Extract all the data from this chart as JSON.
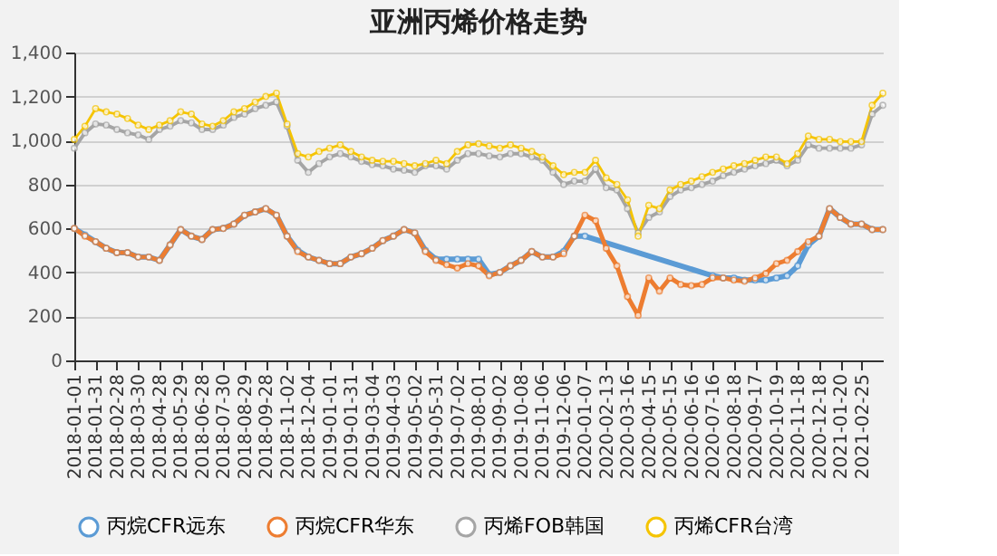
{
  "chart_data": {
    "type": "line",
    "title": "亚洲丙烯价格走势",
    "categories": [
      "2018-01-01",
      null,
      "2018-01-31",
      null,
      "2018-02-28",
      null,
      "2018-03-30",
      null,
      "2018-04-28",
      null,
      "2018-05-29",
      null,
      "2018-06-28",
      null,
      "2018-07-30",
      null,
      "2018-08-29",
      null,
      "2018-09-28",
      null,
      "2018-11-02",
      null,
      "2018-12-04",
      null,
      "2019-01-01",
      null,
      "2019-01-31",
      null,
      "2019-03-04",
      null,
      "2019-04-03",
      null,
      "2019-05-02",
      null,
      "2019-05-31",
      null,
      "2019-07-02",
      null,
      "2019-08-01",
      null,
      "2019-09-02",
      null,
      "2019-10-08",
      null,
      "2019-11-06",
      null,
      "2019-12-06",
      null,
      "2020-01-07",
      null,
      "2020-02-13",
      null,
      "2020-03-16",
      null,
      "2020-04-15",
      null,
      "2020-05-15",
      null,
      "2020-06-16",
      null,
      "2020-07-16",
      null,
      "2020-08-18",
      null,
      "2020-09-17",
      null,
      "2020-10-19",
      null,
      "2020-11-18",
      null,
      "2020-12-18",
      null,
      "2021-01-20",
      null,
      "2021-02-25",
      null,
      null
    ],
    "series": [
      {
        "name": "丙烷CFR远东",
        "color": "#5b9bd5",
        "values": [
          600,
          570,
          540,
          510,
          490,
          490,
          470,
          470,
          455,
          525,
          595,
          565,
          550,
          595,
          600,
          620,
          660,
          675,
          690,
          660,
          565,
          500,
          470,
          455,
          440,
          440,
          470,
          485,
          510,
          545,
          565,
          595,
          580,
          500,
          460,
          460,
          460,
          460,
          460,
          390,
          400,
          430,
          455,
          495,
          470,
          470,
          495,
          565,
          565,
          null,
          null,
          null,
          null,
          null,
          null,
          null,
          null,
          null,
          null,
          null,
          385,
          375,
          375,
          365,
          365,
          365,
          375,
          385,
          430,
          525,
          565,
          690,
          650,
          620,
          620,
          595,
          595
        ]
      },
      {
        "name": "丙烷CFR华东",
        "color": "#ed7d31",
        "values": [
          600,
          565,
          540,
          510,
          490,
          490,
          470,
          470,
          455,
          525,
          595,
          565,
          550,
          595,
          600,
          620,
          660,
          675,
          690,
          660,
          565,
          495,
          470,
          455,
          440,
          440,
          470,
          485,
          510,
          545,
          565,
          595,
          580,
          495,
          455,
          435,
          420,
          440,
          430,
          385,
          400,
          430,
          455,
          495,
          470,
          470,
          485,
          565,
          660,
          635,
          510,
          430,
          290,
          205,
          375,
          315,
          375,
          345,
          340,
          345,
          375,
          375,
          365,
          360,
          375,
          395,
          440,
          455,
          495,
          540,
          565,
          690,
          650,
          620,
          620,
          595,
          595
        ]
      },
      {
        "name": "丙烯FOB韩国",
        "color": "#a5a5a5",
        "values": [
          965,
          1035,
          1075,
          1070,
          1050,
          1035,
          1025,
          1005,
          1050,
          1065,
          1090,
          1080,
          1050,
          1050,
          1070,
          1105,
          1120,
          1145,
          1160,
          1175,
          1065,
          910,
          855,
          895,
          925,
          940,
          925,
          905,
          890,
          885,
          870,
          865,
          855,
          885,
          885,
          870,
          910,
          940,
          940,
          930,
          925,
          940,
          940,
          925,
          910,
          855,
          800,
          815,
          815,
          870,
          785,
          775,
          690,
          580,
          650,
          675,
          745,
          775,
          785,
          800,
          815,
          840,
          855,
          870,
          885,
          895,
          910,
          885,
          910,
          980,
          965,
          965,
          965,
          965,
          980,
          1120,
          1160
        ]
      },
      {
        "name": "丙烯CFR台湾",
        "color": "#f5c400",
        "values": [
          1005,
          1065,
          1145,
          1130,
          1120,
          1100,
          1070,
          1050,
          1070,
          1090,
          1130,
          1120,
          1075,
          1065,
          1090,
          1130,
          1145,
          1175,
          1200,
          1215,
          1075,
          940,
          925,
          950,
          965,
          980,
          950,
          925,
          910,
          905,
          905,
          895,
          885,
          895,
          910,
          895,
          950,
          980,
          985,
          975,
          965,
          980,
          965,
          950,
          925,
          885,
          845,
          855,
          855,
          910,
          830,
          800,
          730,
          565,
          705,
          690,
          775,
          800,
          815,
          835,
          855,
          870,
          885,
          895,
          910,
          925,
          925,
          895,
          940,
          1020,
          1005,
          1005,
          995,
          995,
          995,
          1160,
          1215
        ]
      }
    ],
    "ylim": [
      0,
      1400
    ],
    "yticks": [
      0,
      200,
      400,
      600,
      800,
      {
        "value": 1000,
        "label": "1,000"
      },
      {
        "value": 1200,
        "label": "1,200"
      },
      {
        "value": 1400,
        "label": "1,400"
      }
    ],
    "grid": "y",
    "legend": "bottom",
    "marker": "circle",
    "line_style": "solid"
  }
}
